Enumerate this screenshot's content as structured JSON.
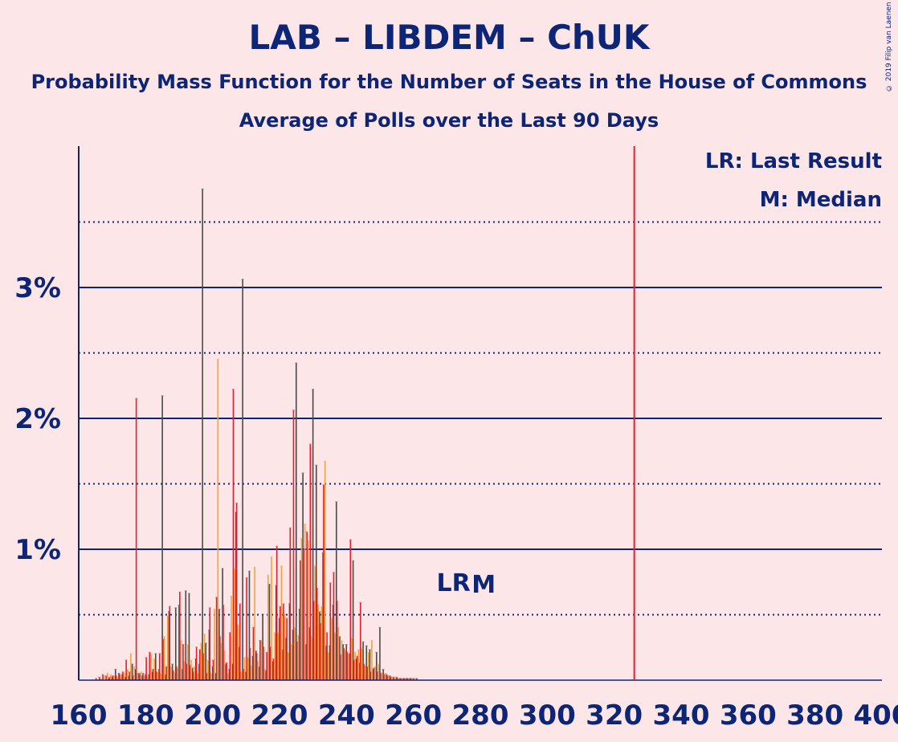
{
  "title": "LAB – LIBDEM – ChUK",
  "subtitle": "Probability Mass Function for the Number of Seats in the House of Commons",
  "subtitle2": "Average of Polls over the Last 90 Days",
  "copyright": "© 2019 Filip van Laenen",
  "legend": {
    "lr": "LR: Last Result",
    "median": "M: Median"
  },
  "markers": {
    "lr_label": "LR",
    "median_label": "M",
    "lr_seat": 272,
    "median_seat": 281,
    "majority_seat": 326
  },
  "colors": {
    "background": "#fde6e8",
    "axis": "#0c2577",
    "red": "#e4202c",
    "orange": "#f5a23a",
    "dark": "#4a4a4a",
    "majority_line": "#e4202c"
  },
  "chart_data": {
    "type": "bar",
    "title": "LAB – LIBDEM – ChUK",
    "xlabel": "",
    "ylabel": "",
    "xlim": [
      160,
      400
    ],
    "ylim": [
      0,
      4.0
    ],
    "x_ticks": [
      "160",
      "180",
      "200",
      "220",
      "240",
      "260",
      "280",
      "300",
      "320",
      "340",
      "360",
      "380",
      "400"
    ],
    "y_ticks": [
      "1%",
      "2%",
      "3%"
    ],
    "series_order": [
      "red",
      "orange",
      "dark"
    ],
    "data": [
      [
        160,
        0,
        0,
        0
      ],
      [
        161,
        0,
        0,
        0
      ],
      [
        162,
        0,
        0,
        0
      ],
      [
        163,
        0,
        0,
        0
      ],
      [
        164,
        0,
        0,
        0
      ],
      [
        165,
        0,
        0,
        0
      ],
      [
        166,
        0.01,
        0.01,
        0
      ],
      [
        167,
        0.02,
        0.03,
        0.01
      ],
      [
        168,
        0.04,
        0.05,
        0.02
      ],
      [
        169,
        0.03,
        0.04,
        0.08
      ],
      [
        170,
        0.02,
        0.03,
        0.05
      ],
      [
        171,
        0.03,
        0.02,
        0.04
      ],
      [
        172,
        0.03,
        0.03,
        0.02
      ],
      [
        173,
        0.04,
        0.05,
        0.03
      ],
      [
        174,
        0.06,
        0.08,
        0.12
      ],
      [
        175,
        0.15,
        0.2,
        0.08
      ],
      [
        176,
        0.06,
        0.1,
        0.05
      ],
      [
        177,
        0.03,
        0.05,
        0.03
      ],
      [
        178,
        2.15,
        0.06,
        0.04
      ],
      [
        179,
        0.04,
        0.03,
        0.04
      ],
      [
        180,
        0.05,
        0.03,
        0.06
      ],
      [
        181,
        0.17,
        0.2,
        0.2
      ],
      [
        182,
        0.21,
        0.16,
        0.08
      ],
      [
        183,
        0.08,
        0.06,
        2.17
      ],
      [
        184,
        0.06,
        0.05,
        0.04
      ],
      [
        185,
        0.2,
        0.33,
        0.52
      ],
      [
        186,
        0.31,
        0.49,
        0.12
      ],
      [
        187,
        0.1,
        0.1,
        0.55
      ],
      [
        188,
        0.56,
        0.06,
        0.57
      ],
      [
        189,
        0.07,
        0.09,
        0.08
      ],
      [
        190,
        0.1,
        0.3,
        0.68
      ],
      [
        191,
        0.67,
        0.14,
        0.66
      ],
      [
        192,
        0.27,
        0.27,
        0.09
      ],
      [
        193,
        0.12,
        0.15,
        0.16
      ],
      [
        194,
        0.11,
        0.1,
        0.12
      ],
      [
        195,
        0.06,
        0.05,
        3.75
      ],
      [
        196,
        0.25,
        0.28,
        0.28
      ],
      [
        197,
        0.23,
        0.35,
        0.38
      ],
      [
        198,
        0.2,
        0.15,
        0.1
      ],
      [
        199,
        0.05,
        0.05,
        0.05
      ],
      [
        200,
        0.55,
        0.54,
        0.54
      ],
      [
        201,
        0.15,
        2.45,
        0.85
      ],
      [
        202,
        0.63,
        0.28,
        0.12
      ],
      [
        203,
        0.33,
        0.22,
        0.08
      ],
      [
        204,
        0.57,
        0.05,
        0.12
      ],
      [
        205,
        0.13,
        0.64,
        1.28
      ],
      [
        206,
        0.36,
        0.85,
        0.25
      ],
      [
        207,
        2.22,
        0.42,
        3.06
      ],
      [
        208,
        1.35,
        0.06,
        0.06
      ],
      [
        209,
        0.58,
        0.17,
        0.83
      ],
      [
        210,
        0.08,
        0.17,
        0.18
      ],
      [
        211,
        0.78,
        0.11,
        0.22
      ],
      [
        212,
        0.24,
        0.86,
        0.1
      ],
      [
        213,
        0.4,
        0.14,
        0.5
      ],
      [
        214,
        0.2,
        0.3,
        0.07
      ],
      [
        215,
        0.3,
        0.08,
        0.73
      ],
      [
        216,
        0.25,
        0.8,
        0.14
      ],
      [
        217,
        0.21,
        0.94,
        0.72
      ],
      [
        218,
        0.25,
        0.36,
        0.47
      ],
      [
        219,
        0.16,
        0.36,
        0.23
      ],
      [
        220,
        1.02,
        0.87,
        0.32
      ],
      [
        221,
        0.56,
        0.5,
        0.58
      ],
      [
        222,
        0.58,
        0.21,
        0.38
      ],
      [
        223,
        0.47,
        0.27,
        2.42
      ],
      [
        224,
        1.16,
        0.4,
        0.54
      ],
      [
        225,
        2.06,
        0.34,
        1.58
      ],
      [
        226,
        0.29,
        1.08,
        0.27
      ],
      [
        227,
        0.91,
        1.19,
        0.4
      ],
      [
        228,
        0.99,
        1.06,
        2.22
      ],
      [
        229,
        1.13,
        0.33,
        1.64
      ],
      [
        230,
        1.8,
        0.87,
        0.52
      ],
      [
        231,
        0.6,
        0.57,
        0.97
      ],
      [
        232,
        0.7,
        0.56,
        0.26
      ],
      [
        233,
        0.43,
        1.67,
        0.26
      ],
      [
        234,
        1.49,
        0.21,
        0.57
      ],
      [
        235,
        0.36,
        0.47,
        1.36
      ],
      [
        236,
        0.74,
        0.36,
        0.33
      ],
      [
        237,
        0.82,
        0.4,
        0.27
      ],
      [
        238,
        0.6,
        0.3,
        0.27
      ],
      [
        239,
        0.19,
        0.23,
        0.2
      ],
      [
        240,
        0.24,
        0.2,
        0.91
      ],
      [
        241,
        0.21,
        0.32,
        0.16
      ],
      [
        242,
        1.07,
        0.21,
        0.13
      ],
      [
        243,
        0.15,
        0.23,
        0.29
      ],
      [
        244,
        0.18,
        0.24,
        0.26
      ],
      [
        245,
        0.59,
        0.11,
        0.23
      ],
      [
        246,
        0.12,
        0.21,
        0.08
      ],
      [
        247,
        0.1,
        0.3,
        0.21
      ],
      [
        248,
        0.06,
        0.1,
        0.4
      ],
      [
        249,
        0.09,
        0.12,
        0.08
      ],
      [
        250,
        0.06,
        0.05,
        0.04
      ],
      [
        251,
        0.05,
        0.05,
        0.03
      ],
      [
        252,
        0.04,
        0.03,
        0.02
      ],
      [
        253,
        0.03,
        0.02,
        0.02
      ],
      [
        254,
        0.02,
        0.02,
        0.01
      ],
      [
        255,
        0.01,
        0.01,
        0.01
      ],
      [
        256,
        0.01,
        0.01,
        0.01
      ],
      [
        257,
        0.01,
        0.01,
        0.01
      ],
      [
        258,
        0.01,
        0.01,
        0.01
      ],
      [
        259,
        0.01,
        0.01,
        0.01
      ],
      [
        260,
        0.01,
        0.01,
        0
      ]
    ]
  }
}
